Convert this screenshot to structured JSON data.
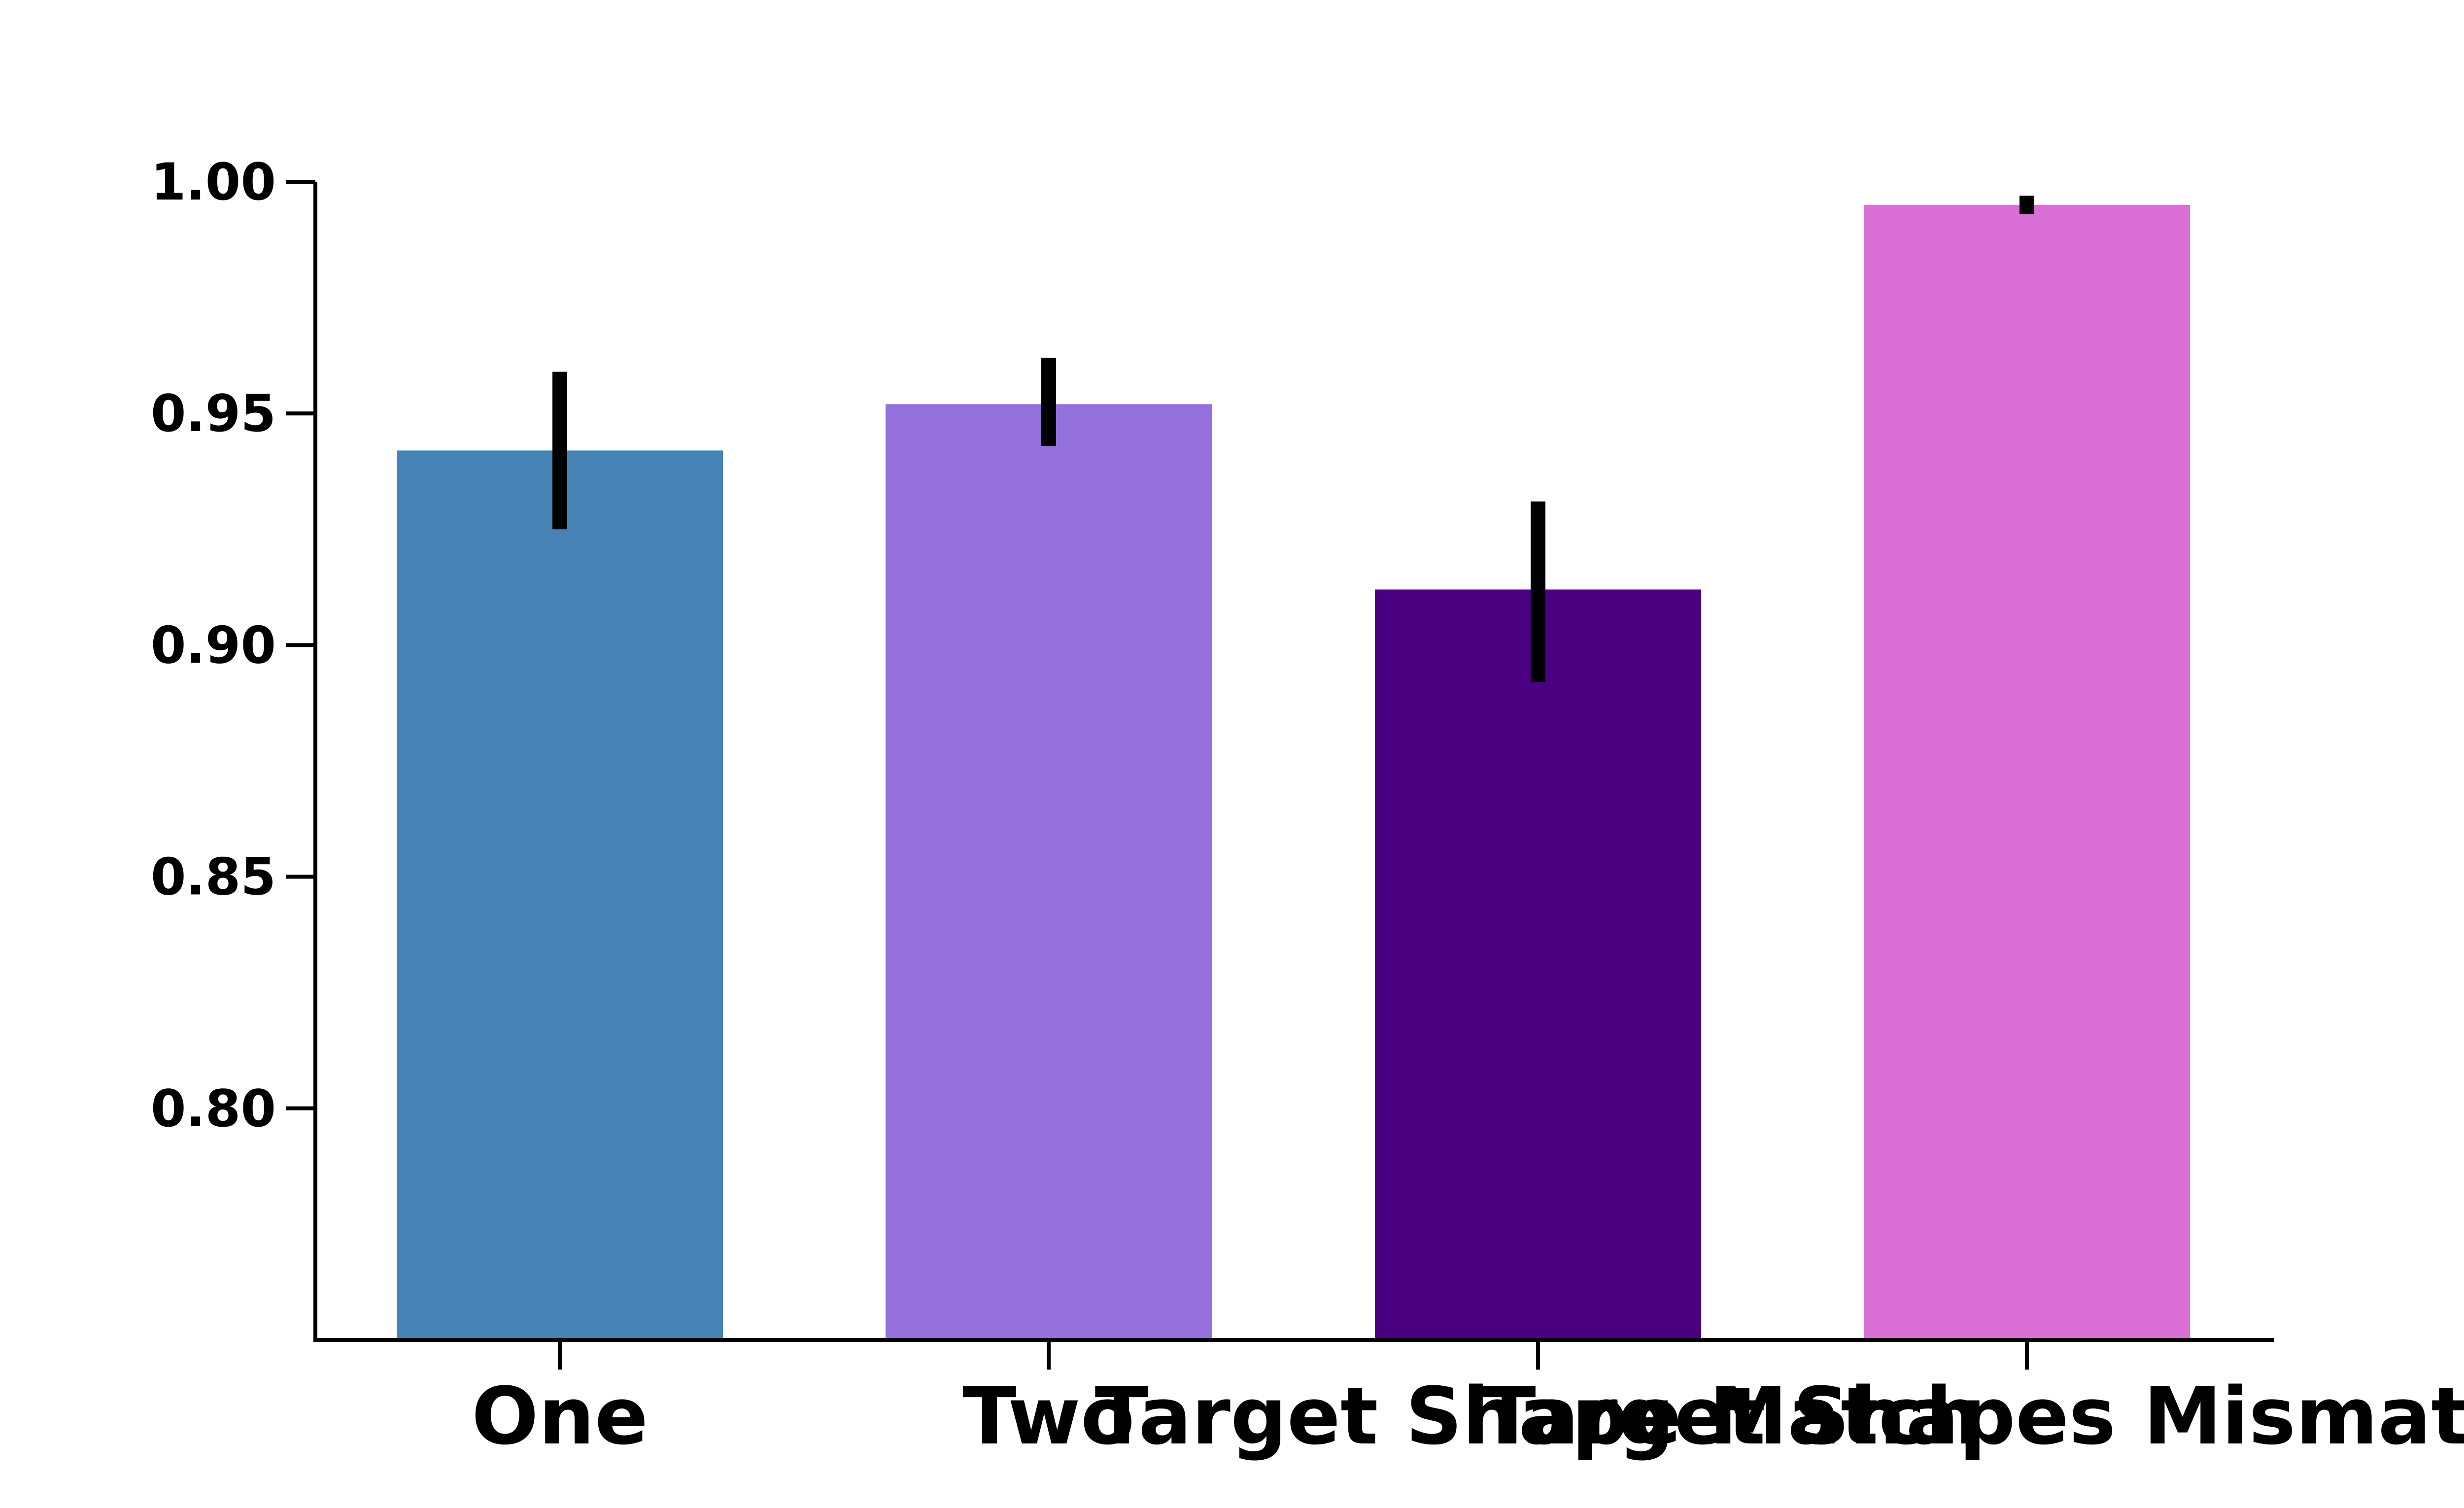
{
  "chart_data": {
    "type": "bar",
    "title": "",
    "xlabel": "",
    "ylabel": "",
    "categories": [
      "One",
      "Two",
      "Target Shape Match",
      "Target Shapes Mismatch"
    ],
    "values": [
      0.942,
      0.952,
      0.912,
      0.995
    ],
    "error_low": [
      0.925,
      0.943,
      0.892,
      0.993
    ],
    "error_high": [
      0.959,
      0.962,
      0.931,
      0.997
    ],
    "colors": [
      "#4682b4",
      "#9370db",
      "#4b0082",
      "#da70d6"
    ],
    "ylim": [
      0.75,
      1.0
    ],
    "yticks": [
      0.8,
      0.85,
      0.9,
      0.95,
      1.0
    ],
    "ytick_labels": [
      "0.80",
      "0.85",
      "0.90",
      "0.95",
      "1.00"
    ],
    "grid": false,
    "legend": "none"
  }
}
